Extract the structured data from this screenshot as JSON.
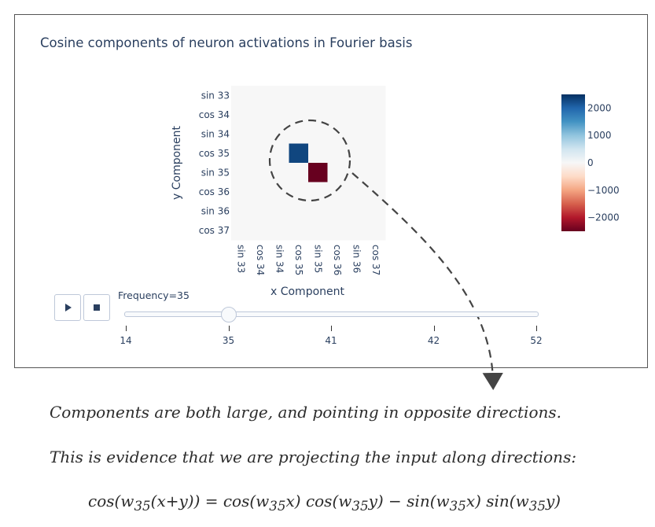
{
  "chart_data": {
    "type": "heatmap",
    "title": "Cosine components of neuron activations in Fourier basis",
    "xlabel": "x Component",
    "ylabel": "y Component",
    "x_categories": [
      "sin 33",
      "cos 34",
      "sin 34",
      "cos 35",
      "sin 35",
      "cos 36",
      "sin 36",
      "cos 37"
    ],
    "y_categories": [
      "sin 33",
      "cos 34",
      "sin 34",
      "cos 35",
      "sin 35",
      "cos 36",
      "sin 36",
      "cos 37"
    ],
    "z": [
      [
        0,
        0,
        0,
        0,
        0,
        0,
        0,
        0
      ],
      [
        0,
        0,
        0,
        0,
        0,
        0,
        0,
        0
      ],
      [
        0,
        0,
        0,
        0,
        0,
        0,
        0,
        0
      ],
      [
        0,
        0,
        0,
        2300,
        0,
        0,
        0,
        0
      ],
      [
        0,
        0,
        0,
        0,
        -2500,
        0,
        0,
        0
      ],
      [
        0,
        0,
        0,
        0,
        0,
        0,
        0,
        0
      ],
      [
        0,
        0,
        0,
        0,
        0,
        0,
        0,
        0
      ],
      [
        0,
        0,
        0,
        0,
        0,
        0,
        0,
        0
      ]
    ],
    "colorscale": "RdBu",
    "zrange": [
      -2500,
      2500
    ],
    "colorbar_ticks": [
      2000,
      1000,
      0,
      -1000,
      -2000
    ],
    "colorbar_ticklabels": [
      "2000",
      "1000",
      "0",
      "−1000",
      "−2000"
    ]
  },
  "slider": {
    "label": "Frequency=35",
    "current_index": 1,
    "steps": [
      "14",
      "35",
      "41",
      "42",
      "52"
    ]
  },
  "controls": {
    "play_icon": "play-icon",
    "stop_icon": "stop-icon"
  },
  "annotation": {
    "line1": "Components are both large, and pointing in opposite directions.",
    "line2": "This is evidence that we are projecting the input along directions:",
    "formula": {
      "lhs": "cos(w",
      "lhs_sub": "35",
      "lhs_rest": "(x+y)) = cos(w",
      "t1_sub": "35",
      "t1_rest": "x) cos(w",
      "t2_sub": "35",
      "t2_rest": "y) − sin(w",
      "t3_sub": "35",
      "t3_rest": "x) sin(w",
      "t4_sub": "35",
      "t4_rest": "y)"
    }
  },
  "colors": {
    "annotation_stroke": "#444444",
    "frame": "#555555"
  }
}
